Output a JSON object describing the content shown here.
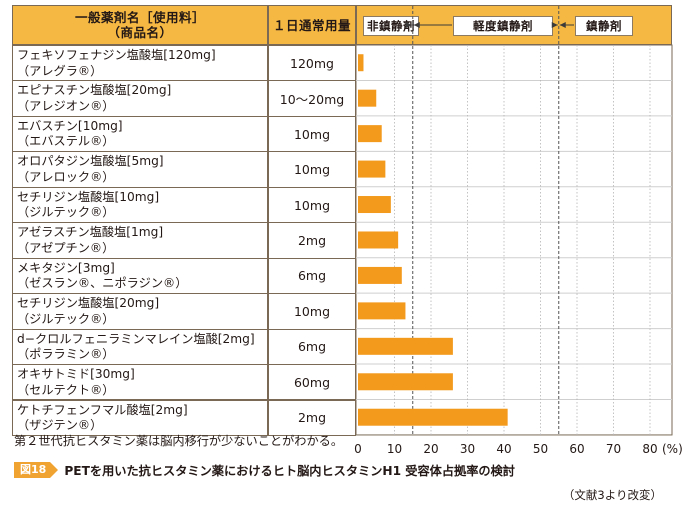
{
  "header": {
    "drug_line1": "一般薬剤名［使用料］",
    "drug_line2": "（商品名）",
    "dose": "１日通常用量",
    "categories": [
      "非鎮静剤",
      "軽度鎮静剤",
      "鎮静剤"
    ]
  },
  "rows": [
    {
      "name1": "フェキソフェナジン塩酸塩[120mg]",
      "name2": "（アレグラ®）",
      "dose": "120mg"
    },
    {
      "name1": "エピナスチン塩酸塩[20mg]",
      "name2": "（アレジオン®）",
      "dose": "10〜20mg"
    },
    {
      "name1": "エバスチン[10mg]",
      "name2": "（エバステル®）",
      "dose": "10mg"
    },
    {
      "name1": "オロパタジン塩酸塩[5mg]",
      "name2": "（アレロック®）",
      "dose": "10mg"
    },
    {
      "name1": "セチリジン塩酸塩[10mg]",
      "name2": "（ジルテック®）",
      "dose": "10mg"
    },
    {
      "name1": "アゼラスチン塩酸塩[1mg]",
      "name2": "（アゼプチン®）",
      "dose": "2mg"
    },
    {
      "name1": "メキタジン[3mg]",
      "name2": "（ゼスラン®、ニポラジン®）",
      "dose": "6mg"
    },
    {
      "name1": "セチリジン塩酸塩[20mg]",
      "name2": "（ジルテック®）",
      "dose": "10mg"
    },
    {
      "name1": "d−クロルフェニラミンマレイン塩酸[2mg]",
      "name2": "（ポララミン®）",
      "dose": "6mg"
    },
    {
      "name1": "オキサトミド[30mg]",
      "name2": "（セルテクト®）",
      "dose": "60mg"
    },
    {
      "name1": "ケトチフェンフマル酸塩[2mg]",
      "name2": "（ザジテン®）",
      "dose": "2mg"
    }
  ],
  "chart_data": {
    "type": "bar",
    "orientation": "horizontal",
    "categories": [
      "フェキソフェナジン塩酸塩[120mg]",
      "エピナスチン塩酸塩[20mg]",
      "エバスチン[10mg]",
      "オロパタジン塩酸塩[5mg]",
      "セチリジン塩酸塩[10mg]",
      "アゼラスチン塩酸塩[1mg]",
      "メキタジン[3mg]",
      "セチリジン塩酸塩[20mg]",
      "d−クロルフェニラミンマレイン塩酸[2mg]",
      "オキサトミド[30mg]",
      "ケトチフェンフマル酸塩[2mg]"
    ],
    "values": [
      1.5,
      5,
      6.5,
      7.5,
      9,
      11,
      12,
      13,
      26,
      26,
      41
    ],
    "xlim": [
      0,
      80
    ],
    "xticks": [
      0,
      10,
      20,
      30,
      40,
      50,
      60,
      70,
      80
    ],
    "xunit": "(%)",
    "thresholds": [
      15,
      55
    ],
    "bar_color": "#f39a1d",
    "grid": true
  },
  "note": "第２世代抗ヒスタミン薬は脳内移行が少ないことがわかる。",
  "figure": {
    "tag": "図18",
    "title": "PETを用いた抗ヒスタミン薬におけるヒト脳内ヒスタミンH1 受容体占拠率の検討"
  },
  "source": "（文献3より改変）"
}
